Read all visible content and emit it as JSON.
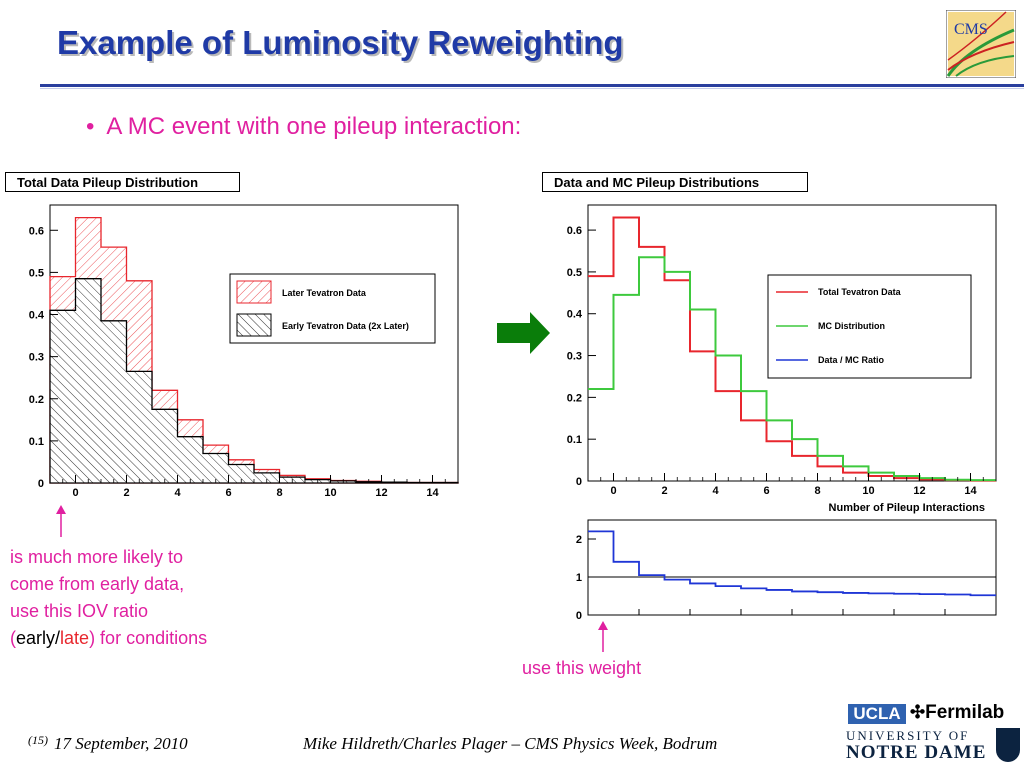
{
  "slide": {
    "title": "Example of Luminosity Reweighting",
    "bullet_marker": "•",
    "bullet": "A MC event with one pileup interaction:"
  },
  "left_panel": {
    "title": "Total Data Pileup Distribution",
    "legend": [
      "Later Tevatron Data",
      "Early Tevatron Data (2x Later)"
    ]
  },
  "right_panel": {
    "title": "Data and MC Pileup Distributions",
    "xlabel": "Number of Pileup Interactions",
    "legend": [
      "Total Tevatron Data",
      "MC Distribution",
      "Data / MC Ratio"
    ]
  },
  "chart_data": [
    {
      "type": "bar",
      "chart": "left",
      "title": "Total Data Pileup Distribution",
      "xlim": [
        -1,
        15
      ],
      "ylim": [
        0,
        0.66
      ],
      "x_ticks": [
        0,
        2,
        4,
        6,
        8,
        10,
        12,
        14
      ],
      "y_ticks": [
        0,
        0.1,
        0.2,
        0.3,
        0.4,
        0.5,
        0.6
      ],
      "x_tick_labels": [
        "0",
        "2",
        "4",
        "6",
        "8",
        "10",
        "12",
        "14"
      ],
      "y_tick_labels": [
        "0",
        "0.1",
        "0.2",
        "0.3",
        "0.4",
        "0.5",
        "0.6"
      ],
      "bin_edges": [
        -1,
        0,
        1,
        2,
        3,
        4,
        5,
        6,
        7,
        8,
        9,
        10,
        11,
        12,
        13,
        14,
        15
      ],
      "series": [
        {
          "name": "Later Tevatron Data",
          "color": "#e8262d",
          "values": [
            0.49,
            0.63,
            0.56,
            0.48,
            0.22,
            0.15,
            0.09,
            0.055,
            0.032,
            0.018,
            0.01,
            0.006,
            0.004,
            0.002,
            0.001,
            0.001
          ]
        },
        {
          "name": "Early Tevatron Data (2x Later)",
          "color": "#000000",
          "values": [
            0.41,
            0.485,
            0.385,
            0.265,
            0.175,
            0.11,
            0.07,
            0.044,
            0.024,
            0.014,
            0.008,
            0.005,
            0.003,
            0.002,
            0.001,
            0.001
          ]
        }
      ],
      "legend_position": "top-right"
    },
    {
      "type": "line",
      "chart": "right-top",
      "title": "Data and MC Pileup Distributions",
      "xlabel": "Number of Pileup Interactions",
      "xlim": [
        -1,
        15
      ],
      "ylim": [
        0,
        0.66
      ],
      "x_ticks": [
        0,
        2,
        4,
        6,
        8,
        10,
        12,
        14
      ],
      "y_ticks": [
        0,
        0.1,
        0.2,
        0.3,
        0.4,
        0.5,
        0.6
      ],
      "x_tick_labels": [
        "0",
        "2",
        "4",
        "6",
        "8",
        "10",
        "12",
        "14"
      ],
      "y_tick_labels": [
        "0",
        "0.1",
        "0.2",
        "0.3",
        "0.4",
        "0.5",
        "0.6"
      ],
      "bin_edges": [
        -1,
        0,
        1,
        2,
        3,
        4,
        5,
        6,
        7,
        8,
        9,
        10,
        11,
        12,
        13,
        14,
        15
      ],
      "series": [
        {
          "name": "Total Tevatron Data",
          "color": "#e8262d",
          "values": [
            0.49,
            0.63,
            0.56,
            0.48,
            0.31,
            0.215,
            0.145,
            0.095,
            0.06,
            0.035,
            0.02,
            0.012,
            0.007,
            0.004,
            0.002,
            0.001
          ]
        },
        {
          "name": "MC Distribution",
          "color": "#3ec93e",
          "values": [
            0.22,
            0.445,
            0.535,
            0.5,
            0.41,
            0.3,
            0.215,
            0.145,
            0.1,
            0.06,
            0.035,
            0.02,
            0.012,
            0.007,
            0.003,
            0.002
          ]
        }
      ],
      "legend_position": "top-right"
    },
    {
      "type": "line",
      "chart": "right-bottom",
      "xlim": [
        -1,
        15
      ],
      "ylim": [
        0,
        2.5
      ],
      "y_ticks": [
        0,
        1,
        2
      ],
      "y_tick_labels": [
        "0",
        "1",
        "2"
      ],
      "reference_line": 1,
      "bin_edges": [
        -1,
        0,
        1,
        2,
        3,
        4,
        5,
        6,
        7,
        8,
        9,
        10,
        11,
        12,
        13,
        14,
        15
      ],
      "series": [
        {
          "name": "Data / MC Ratio",
          "color": "#1f36d6",
          "values": [
            2.2,
            1.4,
            1.05,
            0.93,
            0.83,
            0.76,
            0.7,
            0.66,
            0.62,
            0.6,
            0.58,
            0.57,
            0.56,
            0.55,
            0.54,
            0.52
          ]
        }
      ]
    }
  ],
  "annotations": {
    "left_note": [
      "is much more likely to",
      "come from early data,",
      "use this IOV ratio"
    ],
    "left_note_last": {
      "open": "(",
      "early": "early",
      "sep": "/",
      "late": "late",
      "tail": ") for conditions"
    },
    "right_note": "use this weight"
  },
  "footer": {
    "slide_number": "(15)",
    "date": "17 September, 2010",
    "center": "Mike Hildreth/Charles Plager – CMS Physics Week, Bodrum"
  },
  "logos": {
    "cms_text": "CMS",
    "ucla": "UCLA",
    "fermilab": "Fermilab",
    "university_of": "UNIVERSITY OF",
    "notre_dame": "NOTRE DAME"
  },
  "colors": {
    "title": "#1f3aa6",
    "annotation": "#e020a0",
    "arrow": "#0a7d0a",
    "data_red": "#e8262d",
    "mc_green": "#3ec93e",
    "ratio_blue": "#1f36d6"
  }
}
